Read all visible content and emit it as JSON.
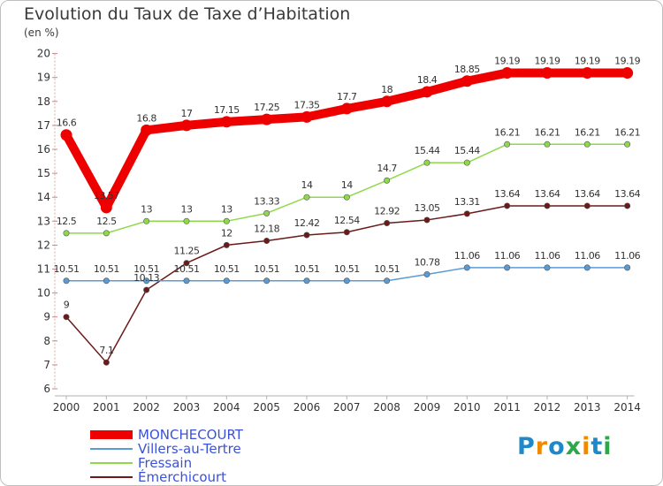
{
  "title": "Evolution du Taux de Taxe d’Habitation",
  "unit": "(en %)",
  "brand": "Proxiti",
  "chart_data": {
    "type": "line",
    "title": "Evolution du Taux de Taxe d’Habitation",
    "ylabel": "(en %)",
    "x": [
      "2000",
      "2001",
      "2002",
      "2003",
      "2004",
      "2005",
      "2006",
      "2007",
      "2008",
      "2009",
      "2010",
      "2011",
      "2012",
      "2013",
      "2014"
    ],
    "ylim": [
      6,
      20
    ],
    "yticks": [
      6,
      7,
      8,
      9,
      10,
      11,
      12,
      13,
      14,
      15,
      16,
      17,
      18,
      19,
      20
    ],
    "grid": false,
    "legend": "bottom-left",
    "series": [
      {
        "name": "MONCHECOURT",
        "color": "#ee0000",
        "values": [
          16.6,
          13.57,
          16.8,
          17,
          17.15,
          17.25,
          17.35,
          17.7,
          18,
          18.4,
          18.85,
          19.19,
          19.19,
          19.19,
          19.19
        ],
        "labels": [
          "16.6",
          "13.57",
          "16.8",
          "17",
          "17.15",
          "17.25",
          "17.35",
          "17.7",
          "18",
          "18.4",
          "18.85",
          "19.19",
          "19.19",
          "19.19",
          "19.19"
        ]
      },
      {
        "name": "Villers-au-Tertre",
        "color": "#5b9bd5",
        "values": [
          10.51,
          10.51,
          10.51,
          10.51,
          10.51,
          10.51,
          10.51,
          10.51,
          10.51,
          10.78,
          11.06,
          11.06,
          11.06,
          11.06,
          11.06
        ],
        "labels": [
          "10.51",
          "10.51",
          "10.51",
          "10.51",
          "10.51",
          "10.51",
          "10.51",
          "10.51",
          "10.51",
          "10.78",
          "11.06",
          "11.06",
          "11.06",
          "11.06",
          "11.06"
        ]
      },
      {
        "name": "Fressain",
        "color": "#8ed94a",
        "values": [
          12.5,
          12.5,
          13,
          13,
          13,
          13.33,
          14,
          14,
          14.7,
          15.44,
          15.44,
          16.21,
          16.21,
          16.21,
          16.21
        ],
        "labels": [
          "12.5",
          "12.5",
          "13",
          "13",
          "13",
          "13.33",
          "14",
          "14",
          "14.7",
          "15.44",
          "15.44",
          "16.21",
          "16.21",
          "16.21",
          "16.21"
        ]
      },
      {
        "name": "Émerchicourt",
        "color": "#6b1a1a",
        "values": [
          9,
          7.1,
          10.13,
          11.25,
          12,
          12.18,
          12.42,
          12.54,
          12.92,
          13.05,
          13.31,
          13.64,
          13.64,
          13.64,
          13.64
        ],
        "labels": [
          "9",
          "7.1",
          "10.13",
          "11.25",
          "12",
          "12.18",
          "12.42",
          "12.54",
          "12.92",
          "13.05",
          "13.31",
          "13.64",
          "13.64",
          "13.64",
          "13.64"
        ]
      }
    ]
  }
}
